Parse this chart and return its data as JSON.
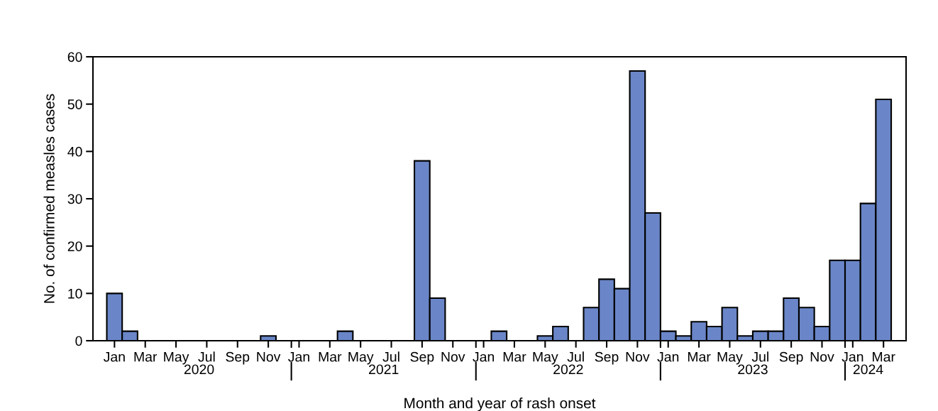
{
  "chart_data": {
    "type": "bar",
    "xlabel": "Month and year of rash onset",
    "ylabel": "No. of confirmed measles cases",
    "x": [
      "2020-01",
      "2020-02",
      "2020-03",
      "2020-04",
      "2020-05",
      "2020-06",
      "2020-07",
      "2020-08",
      "2020-09",
      "2020-10",
      "2020-11",
      "2020-12",
      "2021-01",
      "2021-02",
      "2021-03",
      "2021-04",
      "2021-05",
      "2021-06",
      "2021-07",
      "2021-08",
      "2021-09",
      "2021-10",
      "2021-11",
      "2021-12",
      "2022-01",
      "2022-02",
      "2022-03",
      "2022-04",
      "2022-05",
      "2022-06",
      "2022-07",
      "2022-08",
      "2022-09",
      "2022-10",
      "2022-11",
      "2022-12",
      "2023-01",
      "2023-02",
      "2023-03",
      "2023-04",
      "2023-05",
      "2023-06",
      "2023-07",
      "2023-08",
      "2023-09",
      "2023-10",
      "2023-11",
      "2023-12",
      "2024-01",
      "2024-02",
      "2024-03"
    ],
    "values": [
      10,
      2,
      0,
      0,
      0,
      0,
      0,
      0,
      0,
      0,
      1,
      0,
      0,
      0,
      0,
      2,
      0,
      0,
      0,
      0,
      38,
      9,
      0,
      0,
      0,
      2,
      0,
      0,
      1,
      3,
      0,
      7,
      13,
      11,
      57,
      27,
      2,
      1,
      4,
      3,
      7,
      1,
      2,
      2,
      9,
      7,
      3,
      17,
      17,
      29,
      51
    ],
    "color": "#6a86c8",
    "xlim": [
      "2019-11-19",
      "2024-04-15"
    ],
    "ylim": [
      0,
      60
    ],
    "yticks": [
      0,
      10,
      20,
      30,
      40,
      50,
      60
    ],
    "xticks": [
      {
        "value": "2020-01",
        "label": "Jan"
      },
      {
        "value": "2020-03",
        "label": "Mar"
      },
      {
        "value": "2020-05",
        "label": "May"
      },
      {
        "value": "2020-07",
        "label": "Jul"
      },
      {
        "value": "2020-09",
        "label": "Sep"
      },
      {
        "value": "2020-11",
        "label": "Nov"
      },
      {
        "value": "2021-01",
        "label": "Jan"
      },
      {
        "value": "2021-03",
        "label": "Mar"
      },
      {
        "value": "2021-05",
        "label": "May"
      },
      {
        "value": "2021-07",
        "label": "Jul"
      },
      {
        "value": "2021-09",
        "label": "Sep"
      },
      {
        "value": "2021-11",
        "label": "Nov"
      },
      {
        "value": "2022-01",
        "label": "Jan"
      },
      {
        "value": "2022-03",
        "label": "Mar"
      },
      {
        "value": "2022-05",
        "label": "May"
      },
      {
        "value": "2022-07",
        "label": "Jul"
      },
      {
        "value": "2022-09",
        "label": "Sep"
      },
      {
        "value": "2022-11",
        "label": "Nov"
      },
      {
        "value": "2023-01",
        "label": "Jan"
      },
      {
        "value": "2023-03",
        "label": "Mar"
      },
      {
        "value": "2023-05",
        "label": "May"
      },
      {
        "value": "2023-07",
        "label": "Jul"
      },
      {
        "value": "2023-09",
        "label": "Sep"
      },
      {
        "value": "2023-11",
        "label": "Nov"
      },
      {
        "value": "2024-01",
        "label": "Jan"
      },
      {
        "value": "2024-03",
        "label": "Mar"
      }
    ],
    "annotations": [
      "2020",
      "2021",
      "2022",
      "2023",
      "2024"
    ],
    "grid": false,
    "legend": false
  }
}
